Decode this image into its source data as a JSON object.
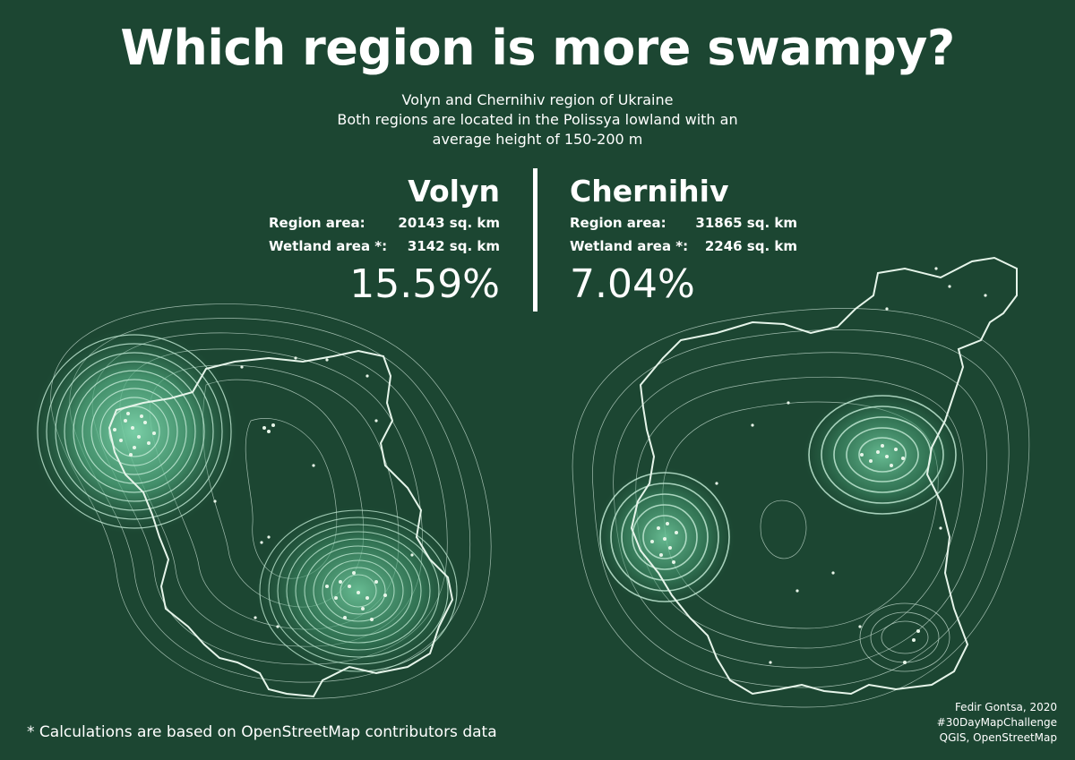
{
  "title": "Which region is more swampy?",
  "subtitle": {
    "line1": "Volyn and Chernihiv region of Ukraine",
    "line2": "Both regions are located in the Polissya lowland with an",
    "line3": "average height of 150-200 m"
  },
  "regions": {
    "volyn": {
      "name": "Volyn",
      "region_area_label": "Region area:",
      "region_area_value": "20143 sq. km",
      "wetland_area_label": "Wetland area *:",
      "wetland_area_value": "3142 sq. km",
      "percent": "15.59%"
    },
    "chernihiv": {
      "name": "Chernihiv",
      "region_area_label": "Region area:",
      "region_area_value": "31865 sq. km",
      "wetland_area_label": "Wetland area *:",
      "wetland_area_value": "2246 sq. km",
      "percent": "7.04%"
    }
  },
  "footnote": "* Calculations are based on OpenStreetMap contributors data",
  "credits": {
    "line1": "Fedir Gontsa, 2020",
    "line2": "#30DayMapChallenge",
    "line3": "QGIS, OpenStreetMap"
  },
  "colors": {
    "background": "#1c4632",
    "text": "#ffffff",
    "contour": "#cfe6da",
    "density_fill": "#6cc79d",
    "wetland_points": "#e8f6e9"
  }
}
